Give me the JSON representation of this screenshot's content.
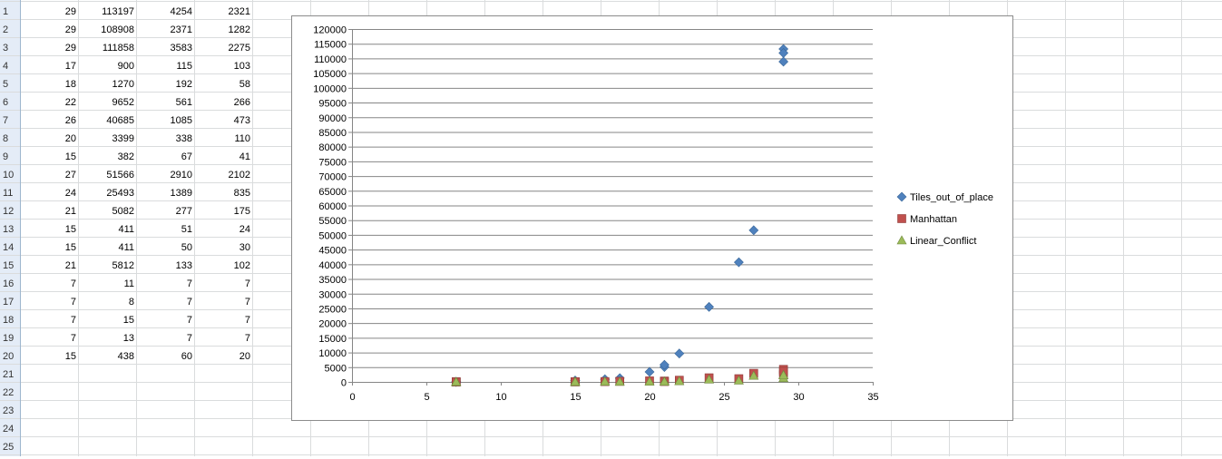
{
  "sheet": {
    "row_numbers": [
      "1",
      "2",
      "3",
      "4",
      "5",
      "6",
      "7",
      "8",
      "9",
      "10",
      "11",
      "12",
      "13",
      "14",
      "15",
      "16",
      "17",
      "18",
      "19",
      "20",
      "21",
      "22",
      "23",
      "24",
      "25"
    ],
    "rows": [
      [
        "29",
        "113197",
        "4254",
        "2321"
      ],
      [
        "29",
        "108908",
        "2371",
        "1282"
      ],
      [
        "29",
        "111858",
        "3583",
        "2275"
      ],
      [
        "17",
        "900",
        "115",
        "103"
      ],
      [
        "18",
        "1270",
        "192",
        "58"
      ],
      [
        "22",
        "9652",
        "561",
        "266"
      ],
      [
        "26",
        "40685",
        "1085",
        "473"
      ],
      [
        "20",
        "3399",
        "338",
        "110"
      ],
      [
        "15",
        "382",
        "67",
        "41"
      ],
      [
        "27",
        "51566",
        "2910",
        "2102"
      ],
      [
        "24",
        "25493",
        "1389",
        "835"
      ],
      [
        "21",
        "5082",
        "277",
        "175"
      ],
      [
        "15",
        "411",
        "51",
        "24"
      ],
      [
        "15",
        "411",
        "50",
        "30"
      ],
      [
        "21",
        "5812",
        "133",
        "102"
      ],
      [
        "7",
        "11",
        "7",
        "7"
      ],
      [
        "7",
        "8",
        "7",
        "7"
      ],
      [
        "7",
        "15",
        "7",
        "7"
      ],
      [
        "7",
        "13",
        "7",
        "7"
      ],
      [
        "15",
        "438",
        "60",
        "20"
      ]
    ]
  },
  "chart_data": {
    "type": "scatter",
    "title": "",
    "xlabel": "",
    "ylabel": "",
    "xlim": [
      0,
      35
    ],
    "ylim": [
      0,
      120000
    ],
    "x_ticks": [
      "0",
      "5",
      "10",
      "15",
      "20",
      "25",
      "30",
      "35"
    ],
    "y_ticks": [
      "0",
      "5000",
      "10000",
      "15000",
      "20000",
      "25000",
      "30000",
      "35000",
      "40000",
      "45000",
      "50000",
      "55000",
      "60000",
      "65000",
      "70000",
      "75000",
      "80000",
      "85000",
      "90000",
      "95000",
      "100000",
      "105000",
      "110000",
      "115000",
      "120000"
    ],
    "grid": "horizontal major",
    "legend_position": "right",
    "x": [
      29,
      29,
      29,
      17,
      18,
      22,
      26,
      20,
      15,
      27,
      24,
      21,
      15,
      15,
      21,
      7,
      7,
      7,
      7,
      15
    ],
    "series": [
      {
        "name": "Tiles_out_of_place",
        "color": "#4f81bd",
        "marker": "diamond",
        "values": [
          113197,
          108908,
          111858,
          900,
          1270,
          9652,
          40685,
          3399,
          382,
          51566,
          25493,
          5082,
          411,
          411,
          5812,
          11,
          8,
          15,
          13,
          438
        ]
      },
      {
        "name": "Manhattan",
        "color": "#c0504d",
        "marker": "square",
        "values": [
          4254,
          2371,
          3583,
          115,
          192,
          561,
          1085,
          338,
          67,
          2910,
          1389,
          277,
          51,
          50,
          133,
          7,
          7,
          7,
          7,
          60
        ]
      },
      {
        "name": "Linear_Conflict",
        "color": "#9bbb59",
        "marker": "triangle",
        "values": [
          2321,
          1282,
          2275,
          103,
          58,
          266,
          473,
          110,
          41,
          2102,
          835,
          175,
          24,
          30,
          102,
          7,
          7,
          7,
          7,
          20
        ]
      }
    ]
  }
}
